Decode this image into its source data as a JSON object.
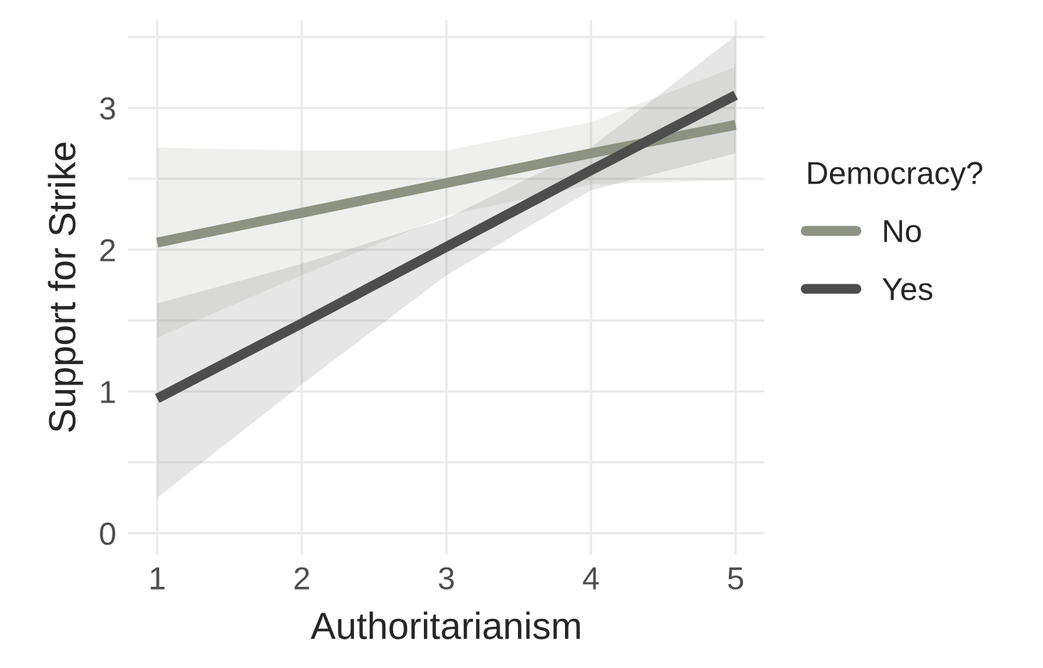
{
  "chart_data": {
    "type": "line",
    "xlabel": "Authoritarianism",
    "ylabel": "Support for Strike",
    "legend_title": "Democracy?",
    "x": [
      1,
      2,
      3,
      4,
      5
    ],
    "series": [
      {
        "name": "No",
        "color": "#8d9282",
        "values": [
          2.05,
          2.26,
          2.47,
          2.68,
          2.88
        ],
        "lower": [
          1.38,
          1.82,
          2.24,
          2.46,
          2.49
        ],
        "upper": [
          2.72,
          2.7,
          2.7,
          2.9,
          3.29
        ]
      },
      {
        "name": "Yes",
        "color": "#4d4d4d",
        "values": [
          0.95,
          1.48,
          2.02,
          2.56,
          3.09
        ],
        "lower": [
          0.25,
          1.05,
          1.82,
          2.42,
          2.68
        ],
        "upper": [
          1.62,
          1.9,
          2.22,
          2.72,
          3.51
        ]
      }
    ],
    "xlim": [
      0.8,
      5.2
    ],
    "ylim": [
      -0.15,
      3.62
    ],
    "xticks": [
      1,
      2,
      3,
      4,
      5
    ],
    "yticks": [
      0,
      {
        "value": 0.5,
        "label": null
      },
      1,
      {
        "value": 1.5,
        "label": null
      },
      2,
      {
        "value": 2.5,
        "label": null
      },
      3,
      {
        "value": 3.5,
        "label": null
      }
    ],
    "grid": true,
    "legend": "right",
    "marker": "none",
    "line_style": "solid"
  }
}
